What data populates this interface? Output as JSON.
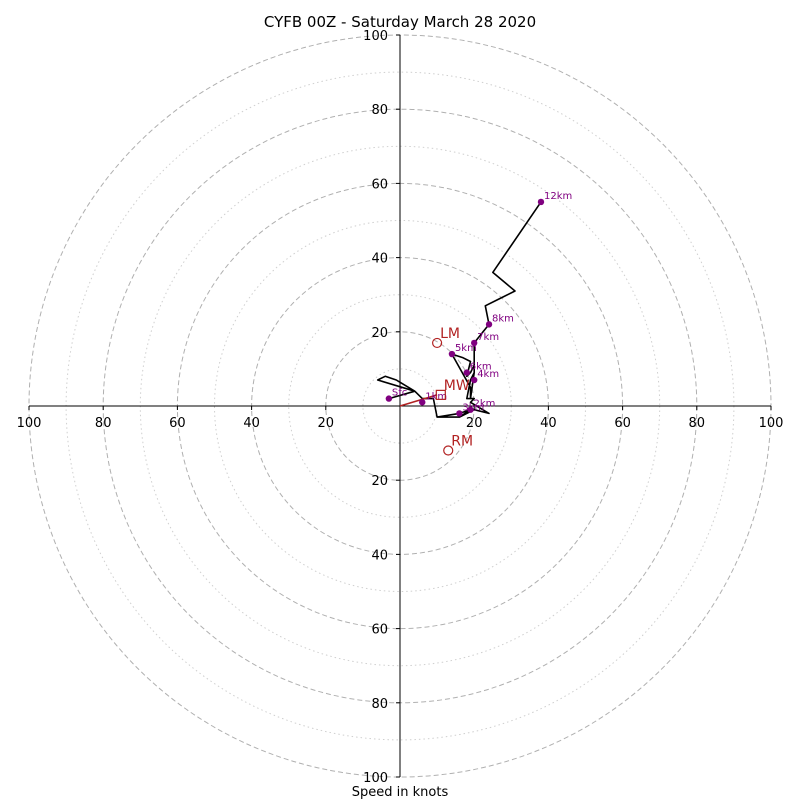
{
  "chart_data": {
    "type": "hodograph",
    "title": "CYFB 00Z - Saturday March 28 2020",
    "xlabel": "Speed in knots",
    "ylabel": "",
    "xlim": [
      -100,
      100
    ],
    "ylim": [
      -100,
      100
    ],
    "ticks": {
      "left": [
        "100",
        "80",
        "60",
        "40",
        "20"
      ],
      "right": [
        "20",
        "40",
        "60",
        "80",
        "100"
      ],
      "up": [
        "20",
        "40",
        "60",
        "80",
        "100"
      ],
      "down": [
        "20",
        "40",
        "60",
        "80",
        "100"
      ]
    },
    "rings_major": [
      20,
      40,
      60,
      80,
      100
    ],
    "rings_minor": [
      10,
      30,
      50,
      70,
      90
    ],
    "grid": true,
    "hodograph_trace": [
      {
        "u": -3,
        "v": 2
      },
      {
        "u": 4,
        "v": 4
      },
      {
        "u": -6,
        "v": 7
      },
      {
        "u": -4,
        "v": 8
      },
      {
        "u": -1,
        "v": 7
      },
      {
        "u": 4,
        "v": 4
      },
      {
        "u": 6,
        "v": 2
      },
      {
        "u": 9,
        "v": 2
      },
      {
        "u": 10,
        "v": -3
      },
      {
        "u": 16,
        "v": -2
      },
      {
        "u": 16,
        "v": -3
      },
      {
        "u": 20,
        "v": -1
      },
      {
        "u": 19,
        "v": -1
      },
      {
        "u": 16,
        "v": -3
      },
      {
        "u": 10,
        "v": -3
      },
      {
        "u": 16,
        "v": -2
      },
      {
        "u": 19,
        "v": -1
      },
      {
        "u": 20,
        "v": -1
      },
      {
        "u": 24,
        "v": -2
      },
      {
        "u": 19,
        "v": 1
      },
      {
        "u": 20,
        "v": 2
      },
      {
        "u": 18,
        "v": 2
      },
      {
        "u": 19,
        "v": 7
      },
      {
        "u": 20,
        "v": 9
      },
      {
        "u": 20,
        "v": 11
      },
      {
        "u": 19,
        "v": 9
      },
      {
        "u": 18,
        "v": 8
      },
      {
        "u": 19,
        "v": 12
      },
      {
        "u": 17,
        "v": 13
      },
      {
        "u": 14,
        "v": 14
      },
      {
        "u": 19,
        "v": 5
      },
      {
        "u": 19,
        "v": 2
      },
      {
        "u": 20,
        "v": 9
      },
      {
        "u": 20,
        "v": 17
      },
      {
        "u": 24,
        "v": 22
      },
      {
        "u": 23,
        "v": 27
      },
      {
        "u": 27,
        "v": 29
      },
      {
        "u": 31,
        "v": 31
      },
      {
        "u": 25,
        "v": 36
      },
      {
        "u": 38,
        "v": 55
      }
    ],
    "height_labels": [
      {
        "label": "Sfc",
        "u": -3,
        "v": 2
      },
      {
        "label": "1km",
        "u": 6,
        "v": 1
      },
      {
        "label": "2km",
        "u": 19,
        "v": -1
      },
      {
        "label": "3km",
        "u": 16,
        "v": -2
      },
      {
        "label": "4km",
        "u": 20,
        "v": 7
      },
      {
        "label": "5km",
        "u": 14,
        "v": 14
      },
      {
        "label": "6km",
        "u": 18,
        "v": 9
      },
      {
        "label": "7km",
        "u": 20,
        "v": 17
      },
      {
        "label": "8km",
        "u": 24,
        "v": 22
      },
      {
        "label": "12km",
        "u": 38,
        "v": 55
      }
    ],
    "motions": [
      {
        "label": "LM",
        "u": 10,
        "v": 17,
        "marker": "circle"
      },
      {
        "label": "MW",
        "u": 11,
        "v": 3,
        "marker": "square"
      },
      {
        "label": "RM",
        "u": 13,
        "v": -12,
        "marker": "circle"
      }
    ],
    "shear_vector": {
      "from_u": 0,
      "from_v": 0,
      "to_u": 10,
      "to_v": 3
    },
    "colors": {
      "trace": "#000000",
      "points": "#800080",
      "motion": "#b22222",
      "grid": "#b0b0b0"
    }
  }
}
